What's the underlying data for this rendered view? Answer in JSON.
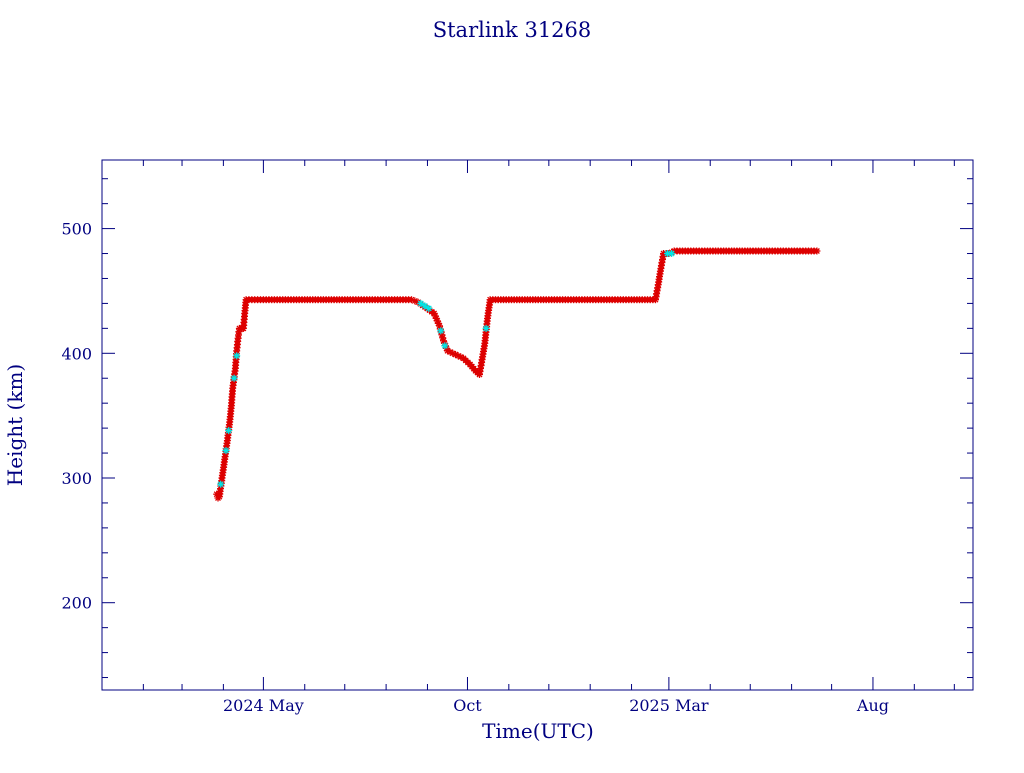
{
  "chart_data": {
    "type": "scatter",
    "title": "Starlink 31268",
    "xlabel": "Time(UTC)",
    "ylabel": "Height (km)",
    "x_range": [
      "2024-01-01",
      "2025-10-15"
    ],
    "ylim": [
      130,
      555
    ],
    "x_ticks": [
      {
        "date": "2024-05-01",
        "label": "2024 May"
      },
      {
        "date": "2024-10-01",
        "label": "Oct"
      },
      {
        "date": "2025-03-01",
        "label": "2025 Mar"
      },
      {
        "date": "2025-08-01",
        "label": "Aug"
      }
    ],
    "y_ticks": [
      200,
      300,
      400,
      500
    ],
    "y_minor_step": 20,
    "grid": false,
    "colors": {
      "frame": "#000080",
      "primary_series": "#dd0000",
      "secondary_series": "#00e5e5",
      "background": "#ffffff"
    },
    "series": [
      {
        "color": "#dd0000",
        "marker": "asterisk",
        "points": [
          [
            "2024-03-27",
            287
          ],
          [
            "2024-03-28",
            284
          ],
          [
            "2024-03-29",
            285
          ],
          [
            "2024-03-31",
            300
          ],
          [
            "2024-04-02",
            315
          ],
          [
            "2024-04-04",
            330
          ],
          [
            "2024-04-06",
            347
          ],
          [
            "2024-04-07",
            358
          ],
          [
            "2024-04-08",
            372
          ],
          [
            "2024-04-10",
            388
          ],
          [
            "2024-04-11",
            402
          ],
          [
            "2024-04-12",
            412
          ],
          [
            "2024-04-13",
            420
          ],
          [
            "2024-04-15",
            420
          ],
          [
            "2024-04-16",
            420
          ],
          [
            "2024-04-17",
            432
          ],
          [
            "2024-04-18",
            443
          ],
          [
            "2024-05-01",
            443
          ],
          [
            "2024-06-01",
            443
          ],
          [
            "2024-07-01",
            443
          ],
          [
            "2024-08-01",
            443
          ],
          [
            "2024-08-20",
            443
          ],
          [
            "2024-08-25",
            441
          ],
          [
            "2024-09-06",
            432
          ],
          [
            "2024-09-10",
            422
          ],
          [
            "2024-09-13",
            410
          ],
          [
            "2024-09-16",
            402
          ],
          [
            "2024-09-22",
            399
          ],
          [
            "2024-09-28",
            396
          ],
          [
            "2024-10-03",
            391
          ],
          [
            "2024-10-07",
            386
          ],
          [
            "2024-10-10",
            383
          ],
          [
            "2024-10-12",
            395
          ],
          [
            "2024-10-14",
            408
          ],
          [
            "2024-10-16",
            428
          ],
          [
            "2024-10-18",
            443
          ],
          [
            "2024-11-01",
            443
          ],
          [
            "2024-12-01",
            443
          ],
          [
            "2025-01-01",
            443
          ],
          [
            "2025-02-01",
            443
          ],
          [
            "2025-02-19",
            443
          ],
          [
            "2025-02-21",
            455
          ],
          [
            "2025-02-23",
            468
          ],
          [
            "2025-02-25",
            480
          ],
          [
            "2025-03-01",
            480
          ],
          [
            "2025-03-05",
            482
          ],
          [
            "2025-04-01",
            482
          ],
          [
            "2025-05-01",
            482
          ],
          [
            "2025-06-01",
            482
          ],
          [
            "2025-06-20",
            482
          ]
        ]
      },
      {
        "color": "#00e5e5",
        "marker": "asterisk",
        "points": [
          [
            "2024-03-30",
            295
          ],
          [
            "2024-04-03",
            322
          ],
          [
            "2024-04-05",
            338
          ],
          [
            "2024-04-09",
            380
          ],
          [
            "2024-04-11",
            398
          ],
          [
            "2024-08-27",
            440
          ],
          [
            "2024-08-30",
            438
          ],
          [
            "2024-09-02",
            436
          ],
          [
            "2024-09-11",
            418
          ],
          [
            "2024-09-14",
            406
          ],
          [
            "2024-10-15",
            420
          ],
          [
            "2025-02-28",
            480
          ],
          [
            "2025-03-03",
            480
          ]
        ]
      }
    ]
  }
}
